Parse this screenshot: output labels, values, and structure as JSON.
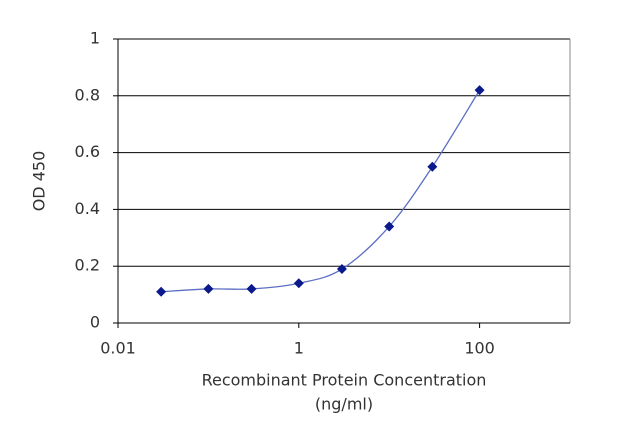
{
  "chart_data": {
    "type": "line",
    "xlabel": [
      "Recombinant Protein Concentration",
      "(ng/ml)"
    ],
    "ylabel": "OD 450",
    "x": [
      0.03,
      0.1,
      0.3,
      1,
      3,
      10,
      30,
      100
    ],
    "series": [
      {
        "color": "#0a1a8c",
        "line_color": "#5b6fc4",
        "values": [
          0.11,
          0.12,
          0.12,
          0.14,
          0.19,
          0.34,
          0.55,
          0.82
        ]
      }
    ],
    "xscale": "log",
    "xlim": [
      0.01,
      1000
    ],
    "xticks": [
      0.01,
      1,
      100
    ],
    "ylim": [
      0,
      1
    ],
    "yticks": [
      0,
      0.2,
      0.4,
      0.6,
      0.8,
      1
    ],
    "grid": true
  }
}
